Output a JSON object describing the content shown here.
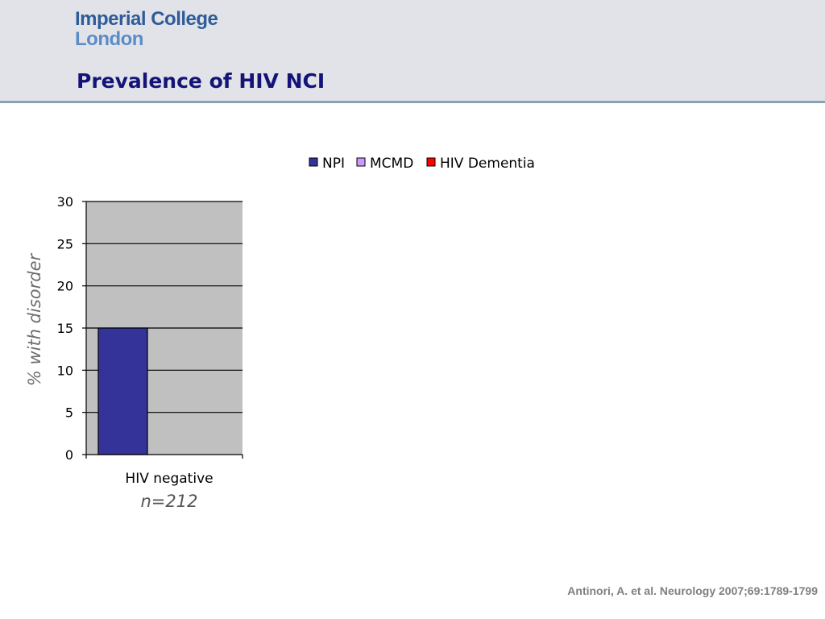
{
  "header": {
    "logo_line1": "Imperial College",
    "logo_line2": "London",
    "title": "Prevalence of HIV NCI"
  },
  "colors": {
    "header_bg": "#e2e3e8",
    "title": "#141478",
    "logo": "#2e5c99",
    "plot_bg": "#c0c0c0",
    "npi": "#333399",
    "mcmd": "#cc99ff",
    "hiv_dementia": "#ff0000"
  },
  "chart_data": {
    "type": "bar",
    "categories": [
      "HIV negative"
    ],
    "category_sublabels": [
      "n=212"
    ],
    "series": [
      {
        "name": "NPI",
        "values": [
          15
        ]
      },
      {
        "name": "MCMD",
        "values": [
          null
        ]
      },
      {
        "name": "HIV Dementia",
        "values": [
          null
        ]
      }
    ],
    "ylabel": "% with disorder",
    "ylim": [
      0,
      30
    ],
    "yticks": [
      0,
      5,
      10,
      15,
      20,
      25,
      30
    ],
    "grid": true,
    "legend_position": "top"
  },
  "footer": {
    "citation": "Antinori, A. et al. Neurology 2007;69:1789-1799"
  }
}
